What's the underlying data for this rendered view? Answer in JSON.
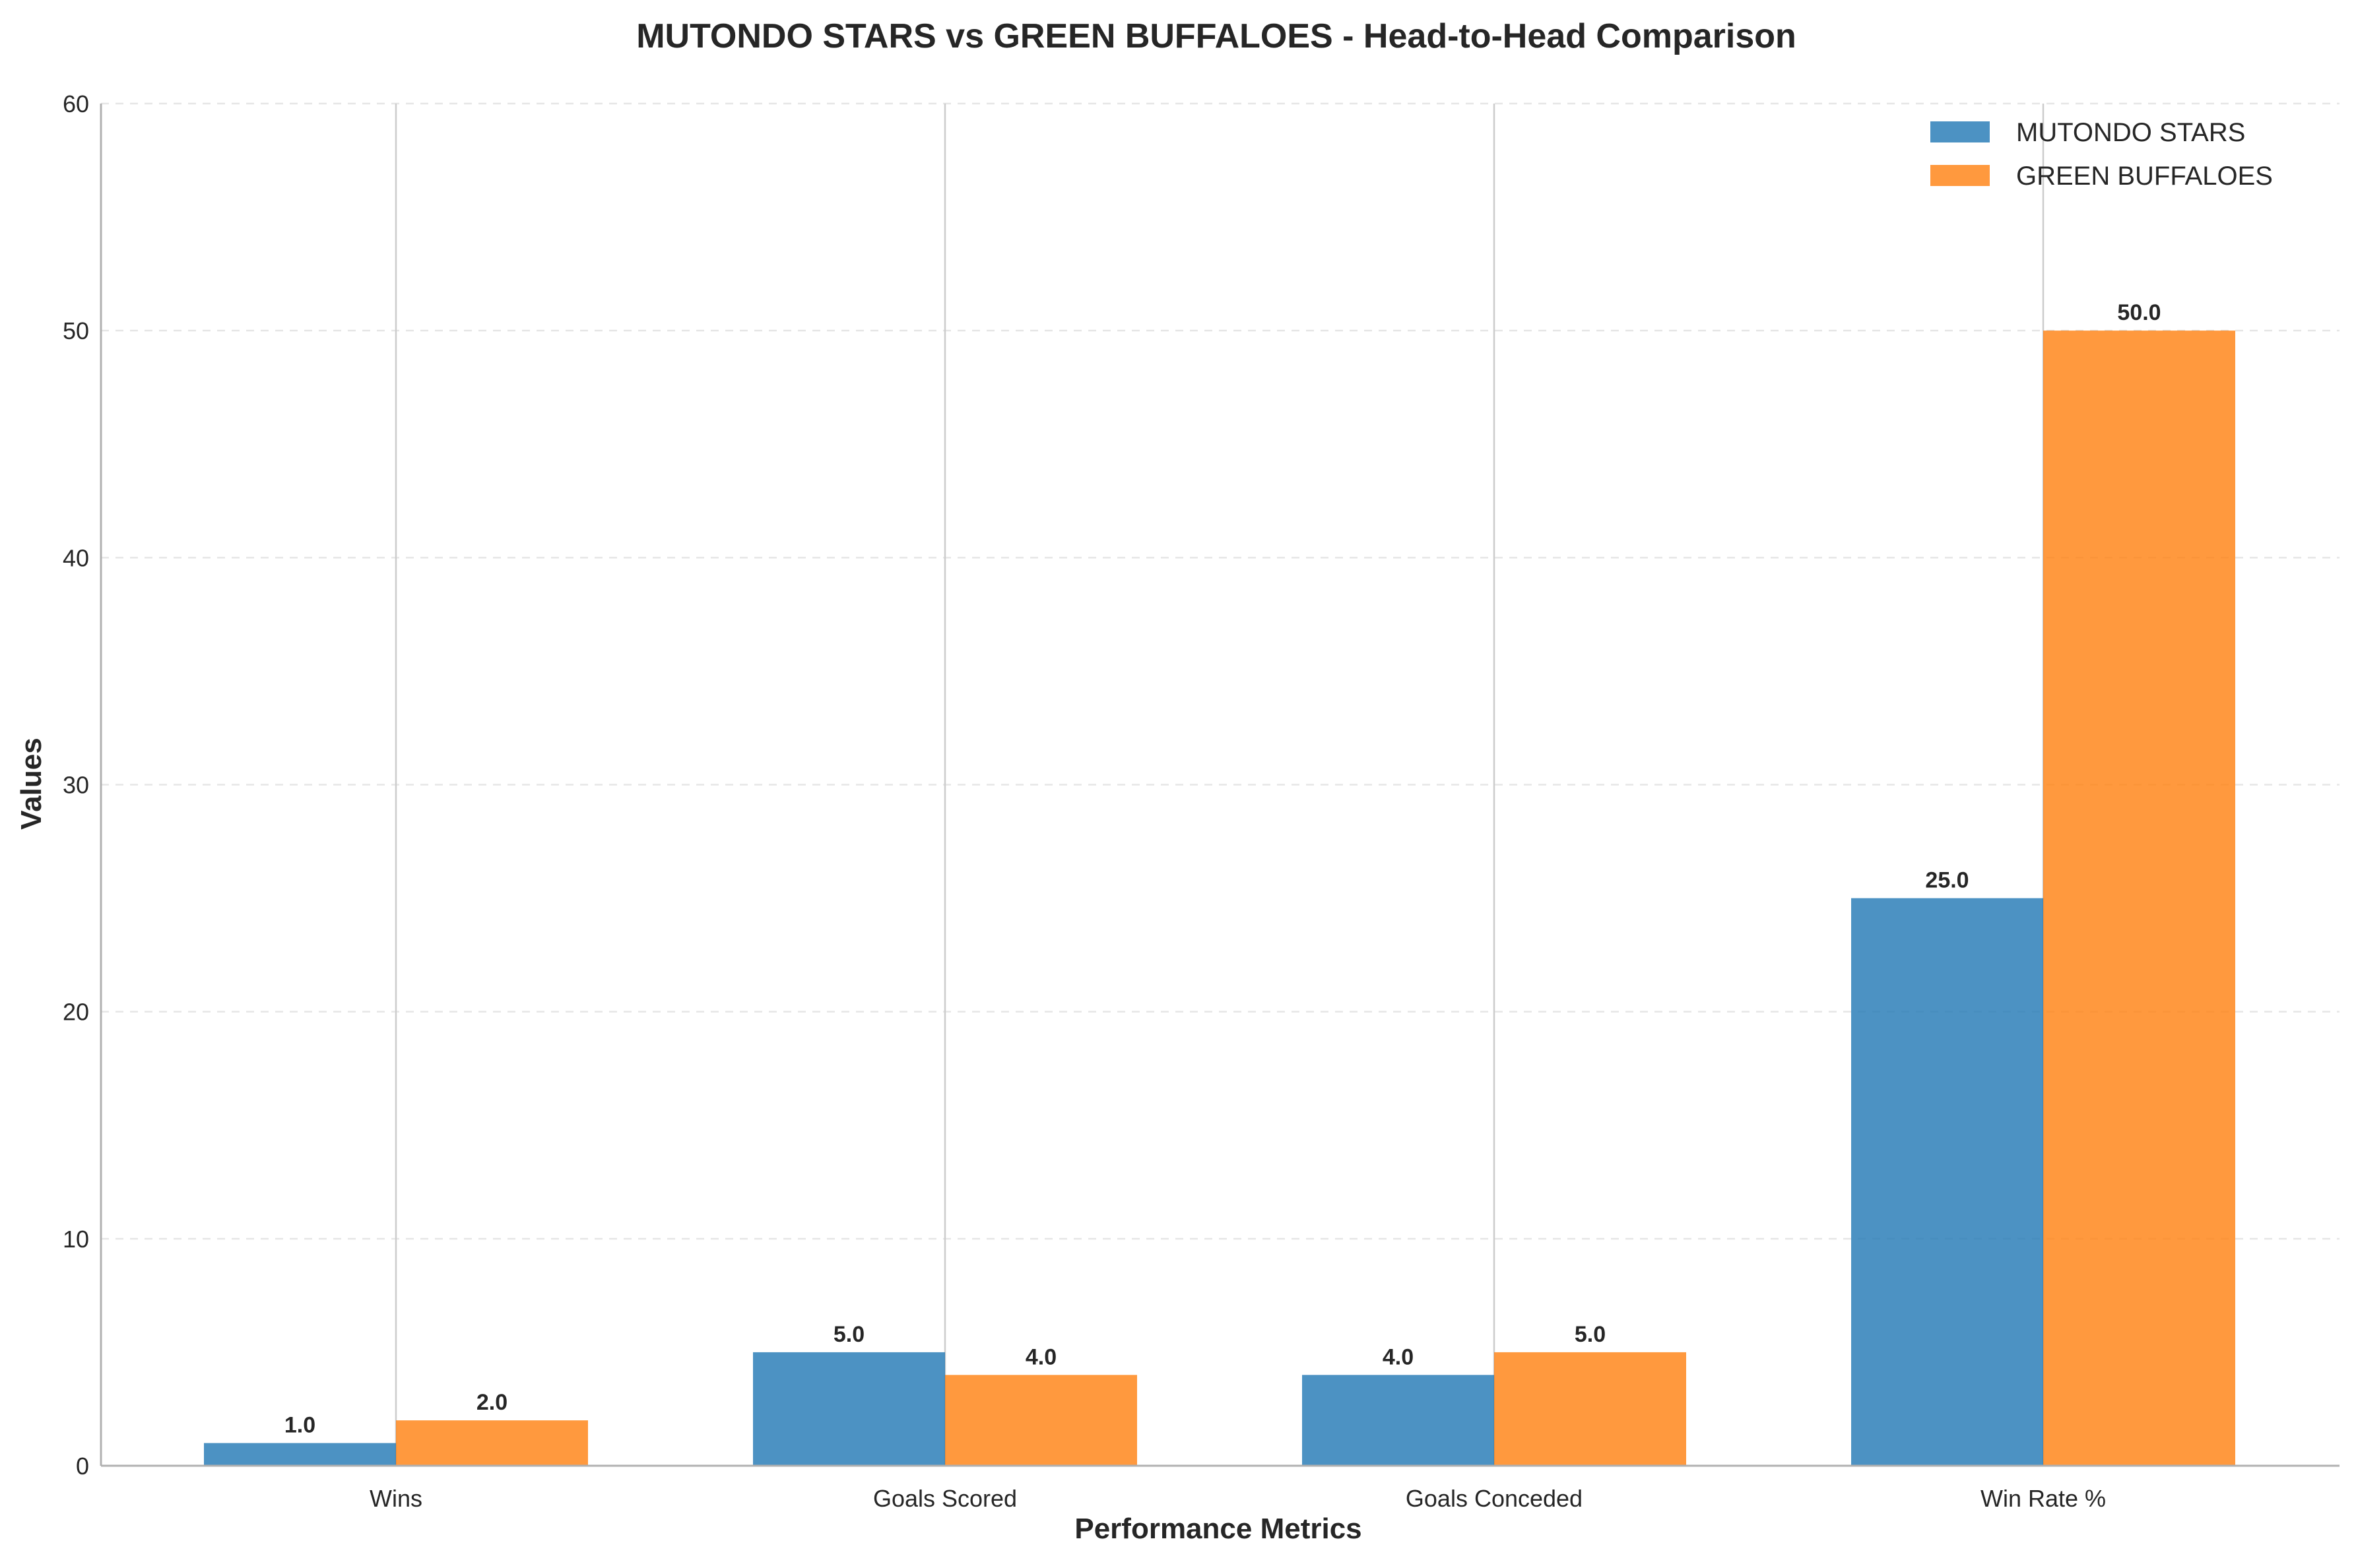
{
  "chart_data": {
    "type": "bar",
    "title": "MUTONDO STARS vs GREEN BUFFALOES - Head-to-Head Comparison",
    "xlabel": "Performance Metrics",
    "ylabel": "Values",
    "categories": [
      "Wins",
      "Goals Scored",
      "Goals Conceded",
      "Win Rate %"
    ],
    "series": [
      {
        "name": "MUTONDO STARS",
        "values": [
          1.0,
          5.0,
          4.0,
          25.0
        ],
        "color": "#1f77b4",
        "labels": [
          "1.0",
          "5.0",
          "4.0",
          "25.0"
        ]
      },
      {
        "name": "GREEN BUFFALOES",
        "values": [
          2.0,
          4.0,
          5.0,
          50.0
        ],
        "color": "#ff7f0e",
        "labels": [
          "2.0",
          "4.0",
          "5.0",
          "50.0"
        ]
      }
    ],
    "ylim": [
      0,
      60
    ],
    "yticks": [
      0,
      10,
      20,
      30,
      40,
      50,
      60
    ],
    "ytick_labels": [
      "0",
      "10",
      "20",
      "30",
      "40",
      "50",
      "60"
    ],
    "grid": true,
    "legend_position": "top-right"
  }
}
